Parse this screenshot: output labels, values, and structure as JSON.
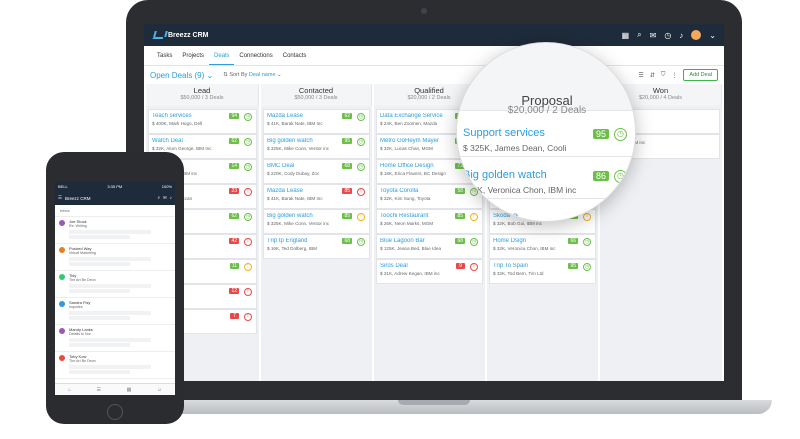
{
  "app": {
    "brand": "Breezz CRM"
  },
  "nav": {
    "tabs": [
      "Tasks",
      "Projects",
      "Deals",
      "Connections",
      "Contacts"
    ],
    "active": "Deals"
  },
  "toolbar": {
    "deal_selector": "Open Deals (9)",
    "sort_label": "Sort By",
    "sort_value": "Deal name",
    "add_deal": "Add Deal"
  },
  "columns": [
    {
      "title": "Lead",
      "summary": "$50,000 / 3 Deals",
      "cards": [
        {
          "name": "Teach services",
          "detail": "$ 400K, Mark Hugo, Dell",
          "badge": "94",
          "status": "green"
        },
        {
          "name": "Watch Deal",
          "detail": "$ 32K, Alum George, IBM Inc",
          "badge": "62",
          "status": "green"
        },
        {
          "name": "ance",
          "detail": "Ivan Romand, IBM inc",
          "badge": "14",
          "status": "green"
        },
        {
          "name": "Wareets",
          "detail": "Watt Chen, Maccan",
          "badge": "23",
          "status": "red"
        },
        {
          "name": "",
          "detail": "",
          "badge": "62",
          "status": "green"
        },
        {
          "name": "ance",
          "detail": "Man, IBM inc",
          "badge": "42",
          "status": "red"
        },
        {
          "name": "",
          "detail": "",
          "badge": "11",
          "status": "yellow"
        },
        {
          "name": "watch",
          "detail": "Caline",
          "badge": "12",
          "status": "red"
        },
        {
          "name": "ance",
          "detail": "",
          "badge": "7",
          "status": "red"
        }
      ]
    },
    {
      "title": "Contacted",
      "summary": "$50,000 / 3 Deals",
      "cards": [
        {
          "name": "Mazda Lease",
          "detail": "$ 41K, Barak Nate, IBM Inc",
          "badge": "62",
          "status": "green"
        },
        {
          "name": "Big golden watch",
          "detail": "$ 325K, Mike Conn, Ventor inc",
          "badge": "95",
          "status": "green"
        },
        {
          "name": "BMC Deal",
          "detail": "$ 220K, Cody Dubay, Zoc",
          "badge": "68",
          "status": "green"
        },
        {
          "name": "Mazda Lease",
          "detail": "$ 41K, Barak Nate, IBM Inc",
          "badge": "85",
          "status": "red"
        },
        {
          "name": "Big golden watch",
          "detail": "$ 325K, Mike Conn, Ventor inc",
          "badge": "85",
          "status": "yellow"
        },
        {
          "name": "Trip tp England",
          "detail": "$ 16K, Ted Dolberg, IBM",
          "badge": "68",
          "status": "green"
        }
      ]
    },
    {
      "title": "Qualified",
      "summary": "$20,000 / 2 Deals",
      "cards": [
        {
          "name": "Data Exchange Service",
          "detail": "$ 24K, Ben Zoomen, Mazda",
          "badge": "95",
          "status": "green"
        },
        {
          "name": "Metro GoHeym Mayer",
          "detail": "$ 32K, Lucas Chan, MGM",
          "badge": "86",
          "status": "green"
        },
        {
          "name": "Home Office Design",
          "detail": "$ 18K, Erica Flavers, BC Design",
          "badge": "72",
          "status": "green"
        },
        {
          "name": "Toyota Corolla",
          "detail": "$ 32K, Kim Sung, Toyota",
          "badge": "58",
          "status": "green"
        },
        {
          "name": "Toochi Restaurant",
          "detail": "$ 26K, Neon Marks, MGM",
          "badge": "85",
          "status": "yellow"
        },
        {
          "name": "Blue Lagoon Bar",
          "detail": "$ 125K, Jeana Bed, Blue Idea",
          "badge": "68",
          "status": "green"
        },
        {
          "name": "Siros Deal",
          "detail": "$ 31K, Adrew Kegan, IBM inc",
          "badge": "9",
          "status": "red"
        }
      ]
    },
    {
      "title": "Proposal",
      "summary": "$20,000 / 2 Deals",
      "cards": [
        {
          "name": "Support services",
          "detail": "$ 325K, James Dean, Cooli",
          "badge": "95",
          "status": "green"
        },
        {
          "name": "Big golden watch",
          "detail": "$ 325K, Veronica Chon, IBM inc",
          "badge": "86",
          "status": "green"
        },
        {
          "name": "France",
          "detail": "",
          "badge": "",
          "status": "green"
        },
        {
          "name": "Trip To France",
          "detail": "$ 26K, Ted Bird, Nossi",
          "badge": "68",
          "status": "green"
        },
        {
          "name": "Skoda",
          "detail": "$ 32K, Bob Goi, IBM inc",
          "badge": "95",
          "status": "yellow"
        },
        {
          "name": "Home Dsign",
          "detail": "$ 32K, Veronica Chon, IBM inc",
          "badge": "66",
          "status": "green"
        },
        {
          "name": "Trip To Spain",
          "detail": "$ 32K, Tod Bern, Tim Ltd",
          "badge": "95",
          "status": "green"
        }
      ]
    },
    {
      "title": "Won",
      "summary": "$20,000 / 4 Deals",
      "cards": [
        {
          "name": "308",
          "detail": "a Mills, Zoc",
          "badge": "",
          "status": ""
        },
        {
          "name": "",
          "detail": "Frank Milo, IBM inc",
          "badge": "",
          "status": ""
        }
      ]
    }
  ],
  "magnifier": {
    "title": "Proposal",
    "summary": "$20,000 / 2 Deals",
    "cards": [
      {
        "name": "Support services",
        "detail": "$ 325K, James Dean, Cooli",
        "badge": "95"
      },
      {
        "name": "Big golden watch",
        "detail": "325K, Veronica Chon, IBM inc",
        "badge": "86"
      }
    ],
    "partial": "France"
  },
  "phone": {
    "status_left": "BELL",
    "status_time": "3:35 PM",
    "status_right": "100%",
    "brand": "Breezz CRM",
    "section": "Inbox",
    "items": [
      {
        "name": "Joe Stock",
        "sub": "Re: Writing",
        "color": "#9b59b6"
      },
      {
        "name": "Pushed Way",
        "sub": "Virtual Marketing",
        "color": "#e67e22"
      },
      {
        "name": "Tidy",
        "sub": "The Art Be Deon",
        "color": "#2ecc71"
      },
      {
        "name": "Sandra Fisy",
        "sub": "Inquiries",
        "color": "#3498db"
      },
      {
        "name": "Mandy Lanks",
        "sub": "Details to Nor",
        "color": "#9b59b6"
      },
      {
        "name": "Toby Kow",
        "sub": "The Art Be Deon",
        "color": "#e74c3c"
      }
    ]
  }
}
